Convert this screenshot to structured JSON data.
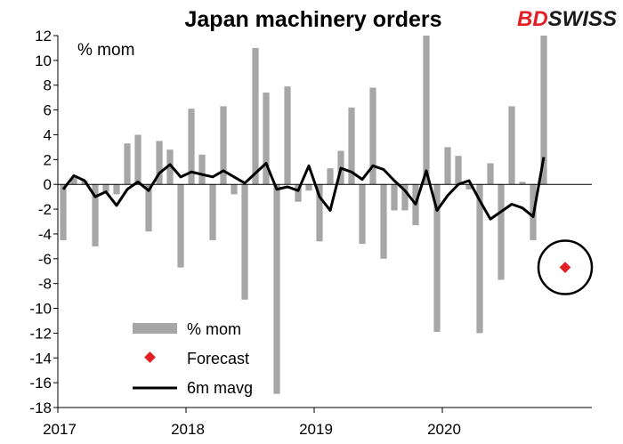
{
  "brand": {
    "part1": "BD",
    "part2": "SWISS",
    "color1": "#e31e24",
    "color2": "#1a1a1a"
  },
  "chart_data": {
    "type": "bar",
    "title": "Japan machinery orders",
    "unit_label": "% mom",
    "ylim": [
      -18,
      12
    ],
    "y_ticks": [
      12,
      10,
      8,
      6,
      4,
      2,
      0,
      -2,
      -4,
      -6,
      -8,
      -10,
      -12,
      -14,
      -16,
      -18
    ],
    "x_tick_labels": [
      "2017",
      "2018",
      "2019",
      "2020"
    ],
    "x_tick_index": [
      0,
      12,
      24,
      36
    ],
    "num_periods": 50,
    "grid": false,
    "legend_position": "bottom-left",
    "series": [
      {
        "name": "% mom",
        "type": "bar",
        "color": "#a6a6a6",
        "values": [
          -4.5,
          0.5,
          0.3,
          -5.0,
          -0.6,
          -0.8,
          3.3,
          4.0,
          -3.8,
          3.5,
          2.8,
          -6.7,
          6.1,
          2.4,
          -4.5,
          6.3,
          -0.8,
          -9.3,
          11.0,
          7.4,
          -16.9,
          7.9,
          -1.4,
          -0.5,
          -4.6,
          1.3,
          2.7,
          6.2,
          -4.8,
          7.8,
          -6.0,
          -2.1,
          -2.1,
          -3.3,
          12.0,
          -11.9,
          3.0,
          2.3,
          -0.4,
          -12.0,
          1.7,
          -7.7,
          6.3,
          0.2,
          -4.5,
          12.0
        ]
      },
      {
        "name": "6m mavg",
        "type": "line",
        "color": "#000000",
        "values": [
          -0.4,
          0.7,
          0.3,
          -1.0,
          -0.6,
          -1.7,
          -0.4,
          0.2,
          -0.5,
          0.9,
          1.6,
          0.6,
          1.0,
          0.8,
          0.6,
          1.1,
          0.6,
          0.1,
          0.9,
          1.7,
          -0.4,
          -0.2,
          -0.5,
          1.5,
          -1.0,
          -2.1,
          1.3,
          1.0,
          0.4,
          1.5,
          1.2,
          0.3,
          -0.5,
          -1.6,
          1.1,
          -2.1,
          -0.9,
          0.0,
          0.3,
          -1.3,
          -2.8,
          -2.2,
          -1.6,
          -1.9,
          -2.6,
          2.2
        ]
      },
      {
        "name": "Forecast",
        "type": "point",
        "color": "#e31e24",
        "index": 47,
        "value": -6.7
      }
    ],
    "annotations": [
      {
        "type": "circle",
        "around": "Forecast"
      }
    ]
  }
}
